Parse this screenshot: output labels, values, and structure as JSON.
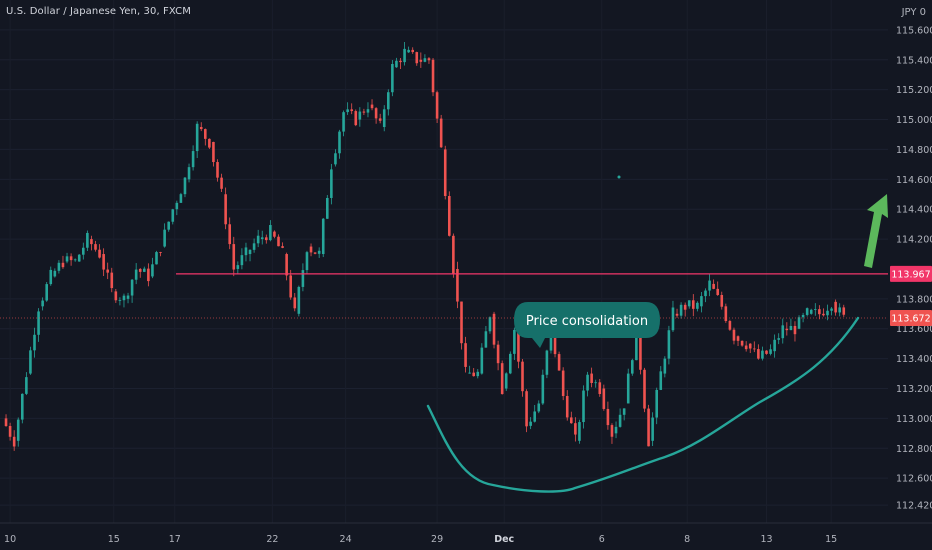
{
  "header": {
    "symbol_title": "U.S. Dollar / Japanese Yen, 30, FXCM",
    "currency": "JPY",
    "currency_suffix": "0"
  },
  "annotation": {
    "callout_text": "Price consolidation"
  },
  "colors": {
    "background": "#131722",
    "up_candle": "#26a69a",
    "down_candle": "#ef5350",
    "resistance_line": "#f23669",
    "current_price_line": "#ef5350",
    "curve": "#26a69a",
    "callout_fill": "#16706a",
    "arrow": "#5cb85c",
    "axis_text": "#b2b5be"
  },
  "chart_data": {
    "type": "line",
    "title": "U.S. Dollar / Japanese Yen, 30, FXCM",
    "xlabel": "",
    "ylabel": "",
    "ylim": [
      112.3,
      115.8
    ],
    "grid": true,
    "y_ticks": [
      "115.600",
      "115.400",
      "115.200",
      "115.000",
      "114.800",
      "114.600",
      "114.400",
      "114.200",
      "113.800",
      "113.600",
      "113.400",
      "113.200",
      "113.000",
      "112.800",
      "112.600",
      "112.420"
    ],
    "x_ticks": [
      "10",
      "15",
      "17",
      "22",
      "24",
      "29",
      "Dec",
      "6",
      "8",
      "13",
      "15"
    ],
    "series": [
      {
        "values": [
          [
            0,
            113.0
          ],
          [
            1,
            112.85
          ],
          [
            2,
            113.3
          ],
          [
            3,
            113.75
          ],
          [
            4,
            113.95
          ],
          [
            5,
            114.05
          ],
          [
            6,
            114.05
          ],
          [
            7,
            114.2
          ],
          [
            8,
            114.1
          ],
          [
            9,
            113.85
          ],
          [
            10,
            113.8
          ],
          [
            11,
            114.0
          ],
          [
            12,
            113.95
          ],
          [
            13,
            114.15
          ],
          [
            14,
            114.4
          ],
          [
            15,
            114.6
          ],
          [
            16,
            114.95
          ],
          [
            17,
            114.85
          ],
          [
            18,
            114.5
          ],
          [
            19,
            114.0
          ],
          [
            20,
            114.1
          ],
          [
            21,
            114.2
          ],
          [
            22,
            114.25
          ],
          [
            23,
            114.1
          ],
          [
            24,
            113.7
          ],
          [
            25,
            114.15
          ],
          [
            26,
            114.1
          ],
          [
            27,
            114.7
          ],
          [
            28,
            115.05
          ],
          [
            29,
            115.0
          ],
          [
            30,
            115.1
          ],
          [
            31,
            114.95
          ],
          [
            32,
            115.35
          ],
          [
            33,
            115.45
          ],
          [
            34,
            115.4
          ],
          [
            35,
            115.4
          ],
          [
            36,
            114.8
          ],
          [
            37,
            114.0
          ],
          [
            38,
            113.3
          ],
          [
            39,
            113.3
          ],
          [
            40,
            113.7
          ],
          [
            41,
            113.2
          ],
          [
            42,
            113.6
          ],
          [
            43,
            112.95
          ],
          [
            44,
            113.1
          ],
          [
            45,
            113.6
          ],
          [
            46,
            113.15
          ],
          [
            47,
            112.85
          ],
          [
            48,
            113.3
          ],
          [
            49,
            113.2
          ],
          [
            50,
            112.9
          ],
          [
            51,
            113.1
          ],
          [
            52,
            113.6
          ],
          [
            53,
            112.85
          ],
          [
            54,
            113.3
          ],
          [
            55,
            113.7
          ],
          [
            56,
            113.75
          ],
          [
            57,
            113.75
          ],
          [
            58,
            113.9
          ],
          [
            59,
            113.75
          ],
          [
            60,
            113.55
          ],
          [
            61,
            113.5
          ],
          [
            62,
            113.4
          ],
          [
            63,
            113.45
          ],
          [
            64,
            113.6
          ],
          [
            65,
            113.6
          ],
          [
            66,
            113.7
          ],
          [
            67,
            113.7
          ],
          [
            68,
            113.78
          ],
          [
            69,
            113.67
          ]
        ]
      }
    ],
    "levels": {
      "resistance": 113.967,
      "current": 113.672
    },
    "price_labels": [
      "113.967",
      "113.672"
    ]
  }
}
